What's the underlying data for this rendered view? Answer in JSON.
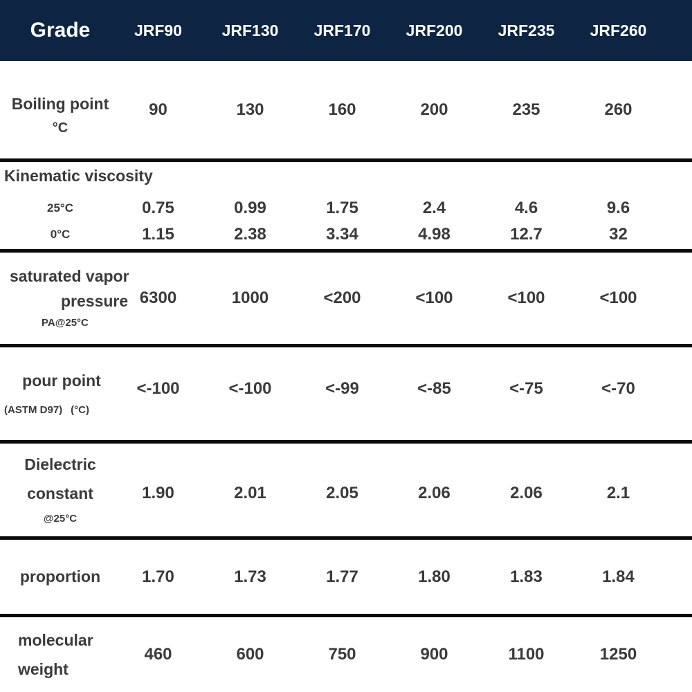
{
  "colors": {
    "header_bg": "#0d2443",
    "header_text": "#ffffff",
    "body_text": "#3b3b3b",
    "divider": "#0a0a0a"
  },
  "chart_data": {
    "type": "table",
    "header": {
      "grade_label": "Grade",
      "columns": [
        "JRF90",
        "JRF130",
        "JRF170",
        "JRF200",
        "JRF235",
        "JRF260"
      ]
    },
    "rows": {
      "boiling_point": {
        "label": "Boiling point",
        "unit": "°C",
        "values": [
          "90",
          "130",
          "160",
          "200",
          "235",
          "260"
        ]
      },
      "kinematic_viscosity": {
        "label": "Kinematic viscosity",
        "sub_rows": [
          {
            "label": "25°C",
            "values": [
              "0.75",
              "0.99",
              "1.75",
              "2.4",
              "4.6",
              "9.6"
            ]
          },
          {
            "label": "0°C",
            "values": [
              "1.15",
              "2.38",
              "3.34",
              "4.98",
              "12.7",
              "32"
            ]
          }
        ]
      },
      "vapor_pressure": {
        "label_line1": "saturated vapor",
        "label_line2": "pressure",
        "unit": "PA@25°C",
        "values": [
          "6300",
          "1000",
          "<200",
          "<100",
          "<100",
          "<100"
        ]
      },
      "pour_point": {
        "label": "pour point",
        "astm_label": "(ASTM D97)",
        "unit": "(°C)",
        "values": [
          "<-100",
          "<-100",
          "<-99",
          "<-85",
          "<-75",
          "<-70"
        ]
      },
      "dielectric_constant": {
        "label_line1": "Dielectric",
        "label_line2": "constant",
        "unit": "@25°C",
        "values": [
          "1.90",
          "2.01",
          "2.05",
          "2.06",
          "2.06",
          "2.1"
        ]
      },
      "proportion": {
        "label": "proportion",
        "values": [
          "1.70",
          "1.73",
          "1.77",
          "1.80",
          "1.83",
          "1.84"
        ]
      },
      "molecular_weight": {
        "label_line1": "molecular",
        "label_line2": "weight",
        "values": [
          "460",
          "600",
          "750",
          "900",
          "1100",
          "1250"
        ]
      }
    }
  }
}
